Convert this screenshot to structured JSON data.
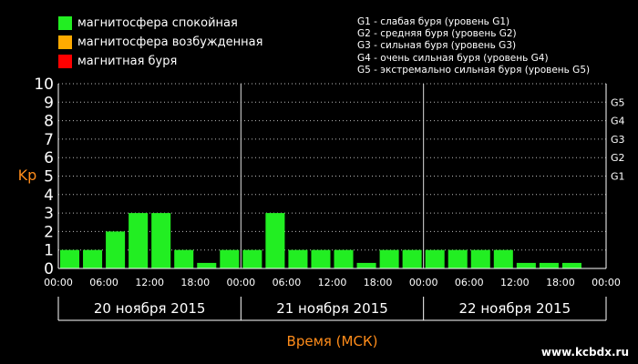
{
  "legend": [
    {
      "label": "магнитосфера спокойная",
      "color": "#22ee22"
    },
    {
      "label": "магнитосфера возбужденная",
      "color": "#ffaa00"
    },
    {
      "label": "магнитная буря",
      "color": "#ff0000"
    }
  ],
  "g_legend": [
    "G1 - слабая буря (уровень G1)",
    "G2 - средняя буря (уровень G2)",
    "G3 - сильная буря (уровень G3)",
    "G4 - очень сильная буря (уровень G4)",
    "G5 - экстремально сильная буря (уровень G5)"
  ],
  "watermark": "www.kcbdx.ru",
  "chart_data": {
    "type": "bar",
    "title": "",
    "ylabel": "Kp",
    "xlabel": "Время (МСК)",
    "ylim": [
      0,
      10
    ],
    "y_ticks": [
      "0",
      "1",
      "2",
      "3",
      "4",
      "5",
      "6",
      "7",
      "8",
      "9",
      "10"
    ],
    "right_ticks": [
      {
        "label": "G1",
        "value": 5
      },
      {
        "label": "G2",
        "value": 6
      },
      {
        "label": "G3",
        "value": 7
      },
      {
        "label": "G4",
        "value": 8
      },
      {
        "label": "G5",
        "value": 9
      }
    ],
    "x_ticks": [
      "00:00",
      "06:00",
      "12:00",
      "18:00",
      "00:00",
      "06:00",
      "12:00",
      "18:00",
      "00:00",
      "06:00",
      "12:00",
      "18:00",
      "00:00"
    ],
    "days": [
      "20 ноября 2015",
      "21 ноября 2015",
      "22 ноября 2015"
    ],
    "bar_color": "#22ee22",
    "values": [
      1,
      1,
      2,
      3,
      3,
      1,
      0.3,
      1,
      1,
      3,
      1,
      1,
      1,
      0.3,
      1,
      1,
      1,
      1,
      1,
      1,
      0.3,
      0.3,
      0.3,
      0
    ]
  }
}
